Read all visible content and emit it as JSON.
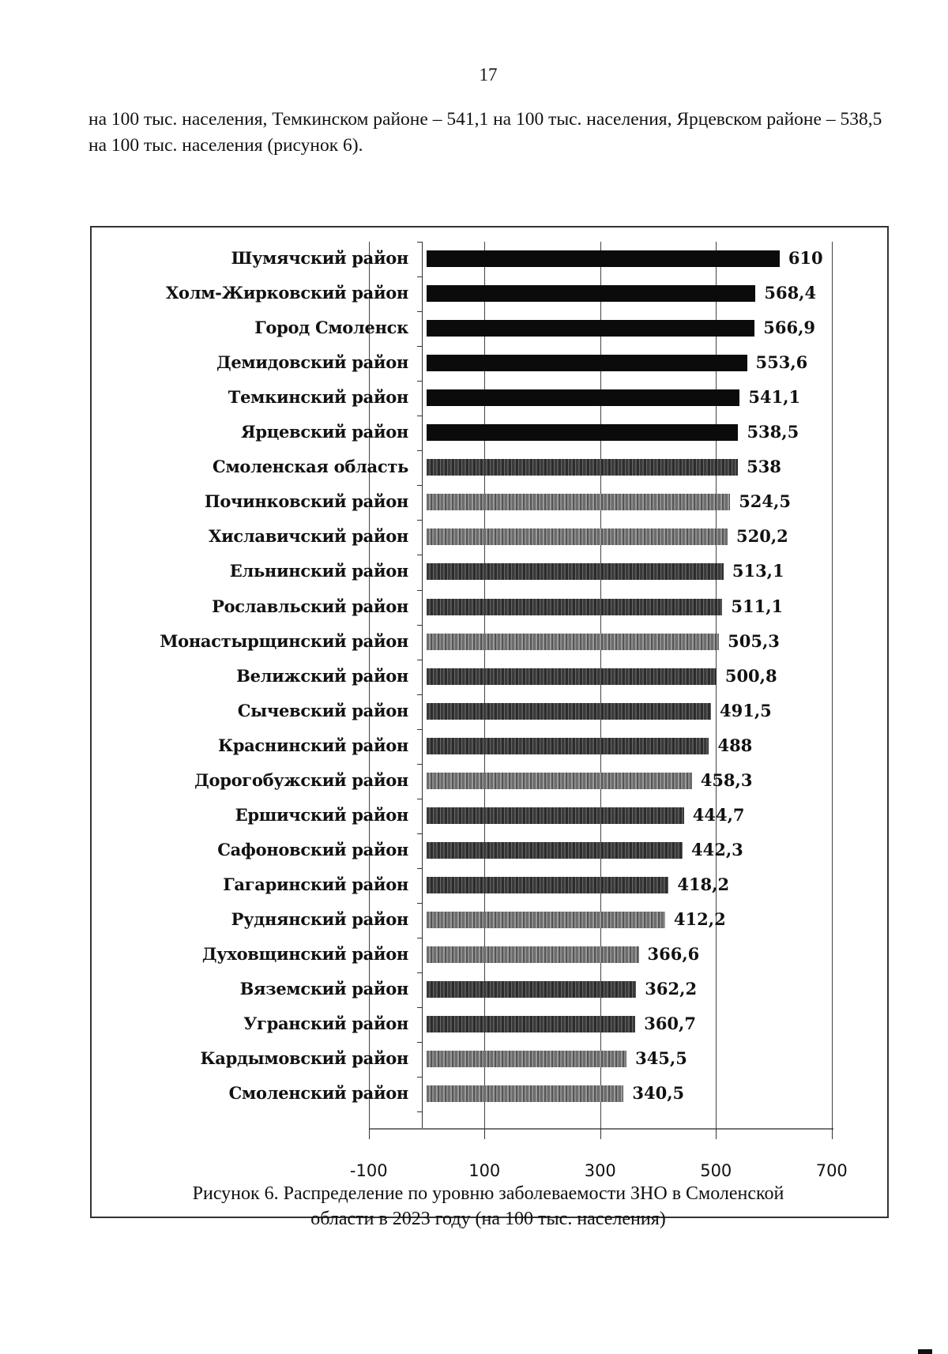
{
  "page": {
    "number": "17",
    "intro_text": "на 100 тыс. населения, Темкинском районе – 541,1 на 100 тыс. населения, Ярцевском районе – 538,5 на 100 тыс. населения (рисунок 6).",
    "caption_line1": "Рисунок 6. Распределение по уровню заболеваемости ЗНО в Смоленской",
    "caption_line2": "области в 2023 году (на 100 тыс. населения)"
  },
  "chart_data": {
    "type": "bar",
    "orientation": "horizontal",
    "title": "Рисунок 6. Распределение по уровню заболеваемости ЗНО в Смоленской области в 2023 году (на 100 тыс. населения)",
    "xlabel": "",
    "ylabel": "",
    "xlim": [
      -100,
      700
    ],
    "x_ticks": [
      "-100",
      "100",
      "300",
      "500",
      "700"
    ],
    "grid": true,
    "legend": null,
    "categories": [
      "Шумячский район",
      "Холм-Жирковский район",
      "Город Смоленск",
      "Демидовский район",
      "Темкинский район",
      "Ярцевский район",
      "Смоленская область",
      "Починковский район",
      "Хиславичский район",
      "Ельнинский район",
      "Рославльский район",
      "Монастырщинский район",
      "Велижский район",
      "Сычевский район",
      "Краснинский район",
      "Дорогобужский район",
      "Ершичский район",
      "Сафоновский район",
      "Гагаринский район",
      "Руднянский район",
      "Духовщинский район",
      "Вяземский район",
      "Угранский район",
      "Кардымовский район",
      "Смоленский район"
    ],
    "values": [
      610,
      568.4,
      566.9,
      553.6,
      541.1,
      538.5,
      538,
      524.5,
      520.2,
      513.1,
      511.1,
      505.3,
      500.8,
      491.5,
      488,
      458.3,
      444.7,
      442.3,
      418.2,
      412.2,
      366.6,
      362.2,
      360.7,
      345.5,
      340.5
    ],
    "value_labels": [
      "610",
      "568,4",
      "566,9",
      "553,6",
      "541,1",
      "538,5",
      "538",
      "524,5",
      "520,2",
      "513,1",
      "511,1",
      "505,3",
      "500,8",
      "491,5",
      "488",
      "458,3",
      "444,7",
      "442,3",
      "418,2",
      "412,2",
      "366,6",
      "362,2",
      "360,7",
      "345,5",
      "340,5"
    ],
    "bar_styles": [
      "dark",
      "dark",
      "dark",
      "dark",
      "dark",
      "dark",
      "mid",
      "light",
      "light",
      "mid",
      "mid",
      "light",
      "mid",
      "mid",
      "mid",
      "light",
      "mid",
      "mid",
      "mid",
      "light",
      "light",
      "mid",
      "mid",
      "light",
      "light"
    ],
    "colors": {
      "above_region_avg": "#0b0b0b",
      "region_avg": "#3a3a3a",
      "below_region_avg": "#7a7a7a"
    }
  }
}
